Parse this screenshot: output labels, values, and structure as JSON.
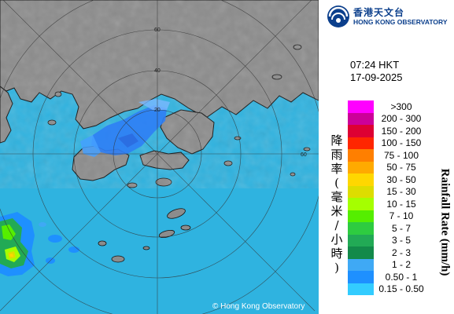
{
  "header": {
    "org_name_zh": "香港天文台",
    "org_name_en": "HONG KONG OBSERVATORY",
    "logo_icon": "hong-kong-observatory-logo"
  },
  "observation": {
    "time": "07:24 HKT",
    "date": "17-09-2025"
  },
  "legend": {
    "title_zh": "降雨率(毫米/小時)",
    "title_en": "Rainfall Rate (mm/h)",
    "items": [
      {
        "label": ">300",
        "color": "#ff00ff"
      },
      {
        "label": "200 - 300",
        "color": "#cc0099"
      },
      {
        "label": "150 - 200",
        "color": "#dd0033"
      },
      {
        "label": "100 - 150",
        "color": "#ff2600"
      },
      {
        "label": "75 - 100",
        "color": "#ff7f00"
      },
      {
        "label": "50 - 75",
        "color": "#ffaa00"
      },
      {
        "label": "30 - 50",
        "color": "#ffd700"
      },
      {
        "label": "15 - 30",
        "color": "#dddd00"
      },
      {
        "label": "10 - 15",
        "color": "#a5ff00"
      },
      {
        "label": "7 - 10",
        "color": "#55ee00"
      },
      {
        "label": "5 - 7",
        "color": "#2ecc40"
      },
      {
        "label": "3 - 5",
        "color": "#22aa55"
      },
      {
        "label": "2 - 3",
        "color": "#138a4a"
      },
      {
        "label": "1 - 2",
        "color": "#3fa9f5"
      },
      {
        "label": "0.50 - 1",
        "color": "#1e90ff"
      },
      {
        "label": "0.15 - 0.50",
        "color": "#33ccff"
      }
    ]
  },
  "map": {
    "range_labels": [
      "20",
      "40",
      "60",
      "80"
    ],
    "copyright": "© Hong Kong Observatory",
    "sea_color": "#2fb3e0",
    "land_color": "#8a8a8a"
  }
}
